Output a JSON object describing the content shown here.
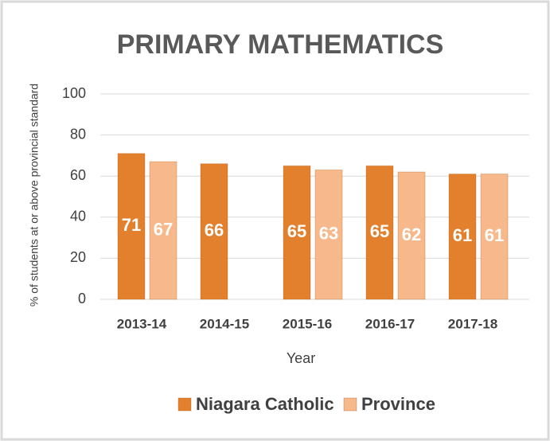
{
  "chart_data": {
    "type": "bar",
    "title": "PRIMARY MATHEMATICS",
    "x_label": "Year",
    "y_label": "% of students at or above provincial standard",
    "categories": [
      "2013-14",
      "2014-15",
      "2015-16",
      "2016-17",
      "2017-18"
    ],
    "series": [
      {
        "name": "Niagara Catholic",
        "color": "#e2802e",
        "values": [
          71,
          66,
          65,
          65,
          61
        ]
      },
      {
        "name": "Province",
        "color": "#f7b98b",
        "values": [
          67,
          null,
          63,
          62,
          61
        ]
      }
    ],
    "ylim": [
      0,
      100
    ],
    "yticks": [
      0,
      20,
      40,
      60,
      80,
      100
    ],
    "grid": true,
    "legend": "bottom"
  }
}
